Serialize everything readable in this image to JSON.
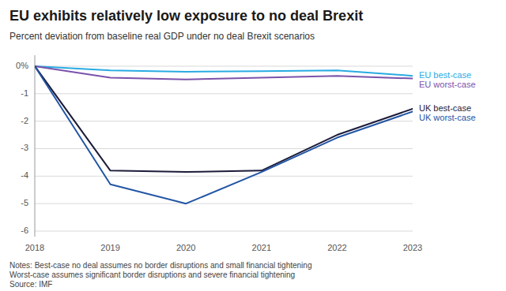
{
  "chart_data": {
    "type": "line",
    "title": "EU exhibits relatively low exposure to no deal Brexit",
    "subtitle": "Percent deviation from baseline real GDP under no deal Brexit scenarios",
    "notes": "Notes: Best-case no deal assumes no border disruptions and small financial tightening\nWorst-case assumes significant border disruptions and severe financial tightening\nSource: IMF",
    "x": [
      2018,
      2019,
      2020,
      2021,
      2022,
      2023
    ],
    "xlim": [
      2018,
      2023
    ],
    "xticks": [
      2018,
      2019,
      2020,
      2021,
      2022,
      2023
    ],
    "ylim": [
      -6.2,
      0.4
    ],
    "yticks": [
      {
        "value": 0,
        "label": "0%"
      },
      -1,
      -2,
      -3,
      -4,
      -5,
      -6
    ],
    "grid": true,
    "series": [
      {
        "name": "EU best-case",
        "color": "#29ABE2",
        "values": [
          0.0,
          -0.15,
          -0.2,
          -0.18,
          -0.15,
          -0.35
        ]
      },
      {
        "name": "EU worst-case",
        "color": "#7B52AB",
        "values": [
          0.0,
          -0.42,
          -0.48,
          -0.42,
          -0.35,
          -0.45
        ]
      },
      {
        "name": "UK best-case",
        "color": "#1C1C3A",
        "values": [
          0.0,
          -3.8,
          -3.85,
          -3.8,
          -2.5,
          -1.55
        ]
      },
      {
        "name": "UK worst-case",
        "color": "#2255A4",
        "values": [
          0.0,
          -4.3,
          -5.0,
          -3.85,
          -2.6,
          -1.65
        ]
      }
    ]
  }
}
